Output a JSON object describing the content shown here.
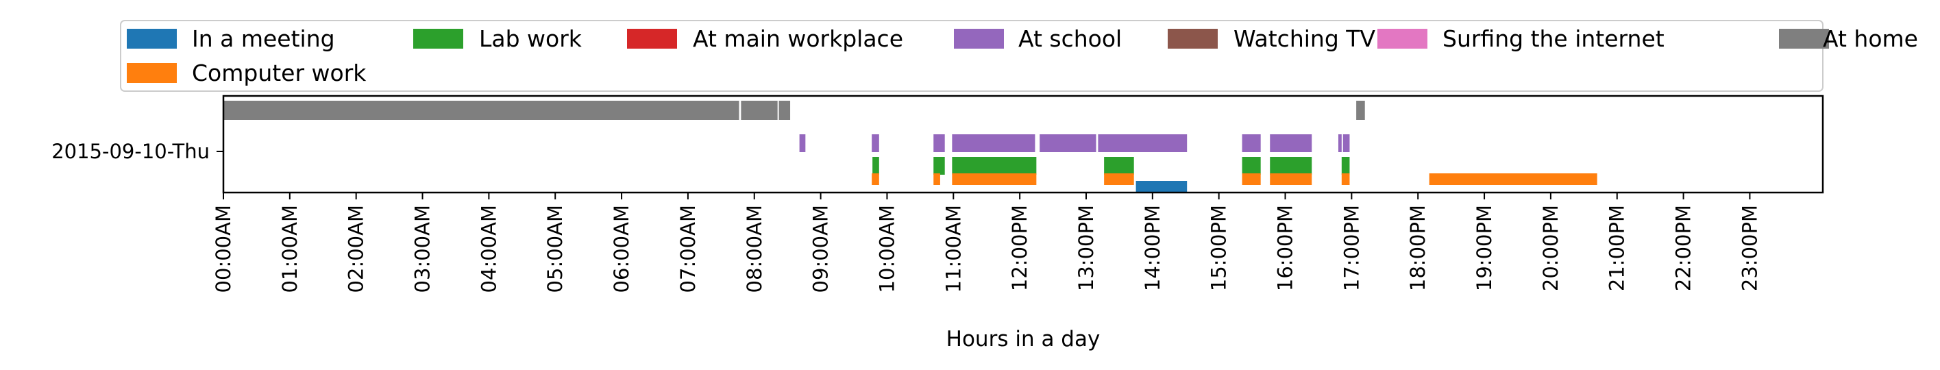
{
  "chart_data": {
    "type": "timeline",
    "title": "",
    "xlabel": "Hours in a day",
    "ylabel": "",
    "xlim": [
      0,
      24
    ],
    "x_ticks": [
      "00:00AM",
      "01:00AM",
      "02:00AM",
      "03:00AM",
      "04:00AM",
      "05:00AM",
      "06:00AM",
      "07:00AM",
      "08:00AM",
      "09:00AM",
      "10:00AM",
      "11:00AM",
      "12:00PM",
      "13:00PM",
      "14:00PM",
      "15:00PM",
      "16:00PM",
      "17:00PM",
      "18:00PM",
      "19:00PM",
      "20:00PM",
      "21:00PM",
      "22:00PM",
      "23:00PM"
    ],
    "y_categories": [
      "2015-09-10-Thu"
    ],
    "grid": false,
    "legend_position": "top",
    "legend": [
      {
        "name": "In a meeting",
        "color": "#1f77b4"
      },
      {
        "name": "Computer work",
        "color": "#ff7f0e"
      },
      {
        "name": "Lab work",
        "color": "#2ca02c"
      },
      {
        "name": "At main workplace",
        "color": "#d62728"
      },
      {
        "name": "At school",
        "color": "#9467bd"
      },
      {
        "name": "Watching TV",
        "color": "#8c564b"
      },
      {
        "name": "Surfing the internet",
        "color": "#e377c2"
      },
      {
        "name": "At home",
        "color": "#7f7f7f"
      }
    ],
    "series": [
      {
        "name": "At home",
        "lane": 0,
        "intervals": [
          [
            0.0,
            7.77
          ],
          [
            7.8,
            8.35
          ],
          [
            8.37,
            8.54
          ],
          [
            17.07,
            17.2
          ]
        ]
      },
      {
        "name": "At school",
        "lane": 1,
        "intervals": [
          [
            8.68,
            8.77
          ],
          [
            9.77,
            9.88
          ],
          [
            10.7,
            10.87
          ],
          [
            10.98,
            12.23
          ],
          [
            12.3,
            13.15
          ],
          [
            13.18,
            14.52
          ],
          [
            15.35,
            15.63
          ],
          [
            15.77,
            16.4
          ],
          [
            16.8,
            16.85
          ],
          [
            16.87,
            16.97
          ]
        ]
      },
      {
        "name": "Lab work",
        "lane": 2,
        "intervals": [
          [
            9.78,
            9.88
          ],
          [
            10.7,
            10.87
          ],
          [
            10.98,
            12.25
          ],
          [
            13.27,
            13.72
          ],
          [
            15.35,
            15.63
          ],
          [
            15.77,
            16.4
          ],
          [
            16.85,
            16.97
          ]
        ]
      },
      {
        "name": "Computer work",
        "lane": 3,
        "intervals": [
          [
            9.77,
            9.88
          ],
          [
            10.7,
            10.8
          ],
          [
            10.98,
            12.25
          ],
          [
            13.27,
            13.72
          ],
          [
            15.35,
            15.63
          ],
          [
            15.77,
            16.4
          ],
          [
            16.85,
            16.97
          ],
          [
            18.17,
            20.7
          ]
        ]
      },
      {
        "name": "In a meeting",
        "lane": 4,
        "intervals": [
          [
            13.75,
            14.52
          ]
        ]
      }
    ]
  }
}
